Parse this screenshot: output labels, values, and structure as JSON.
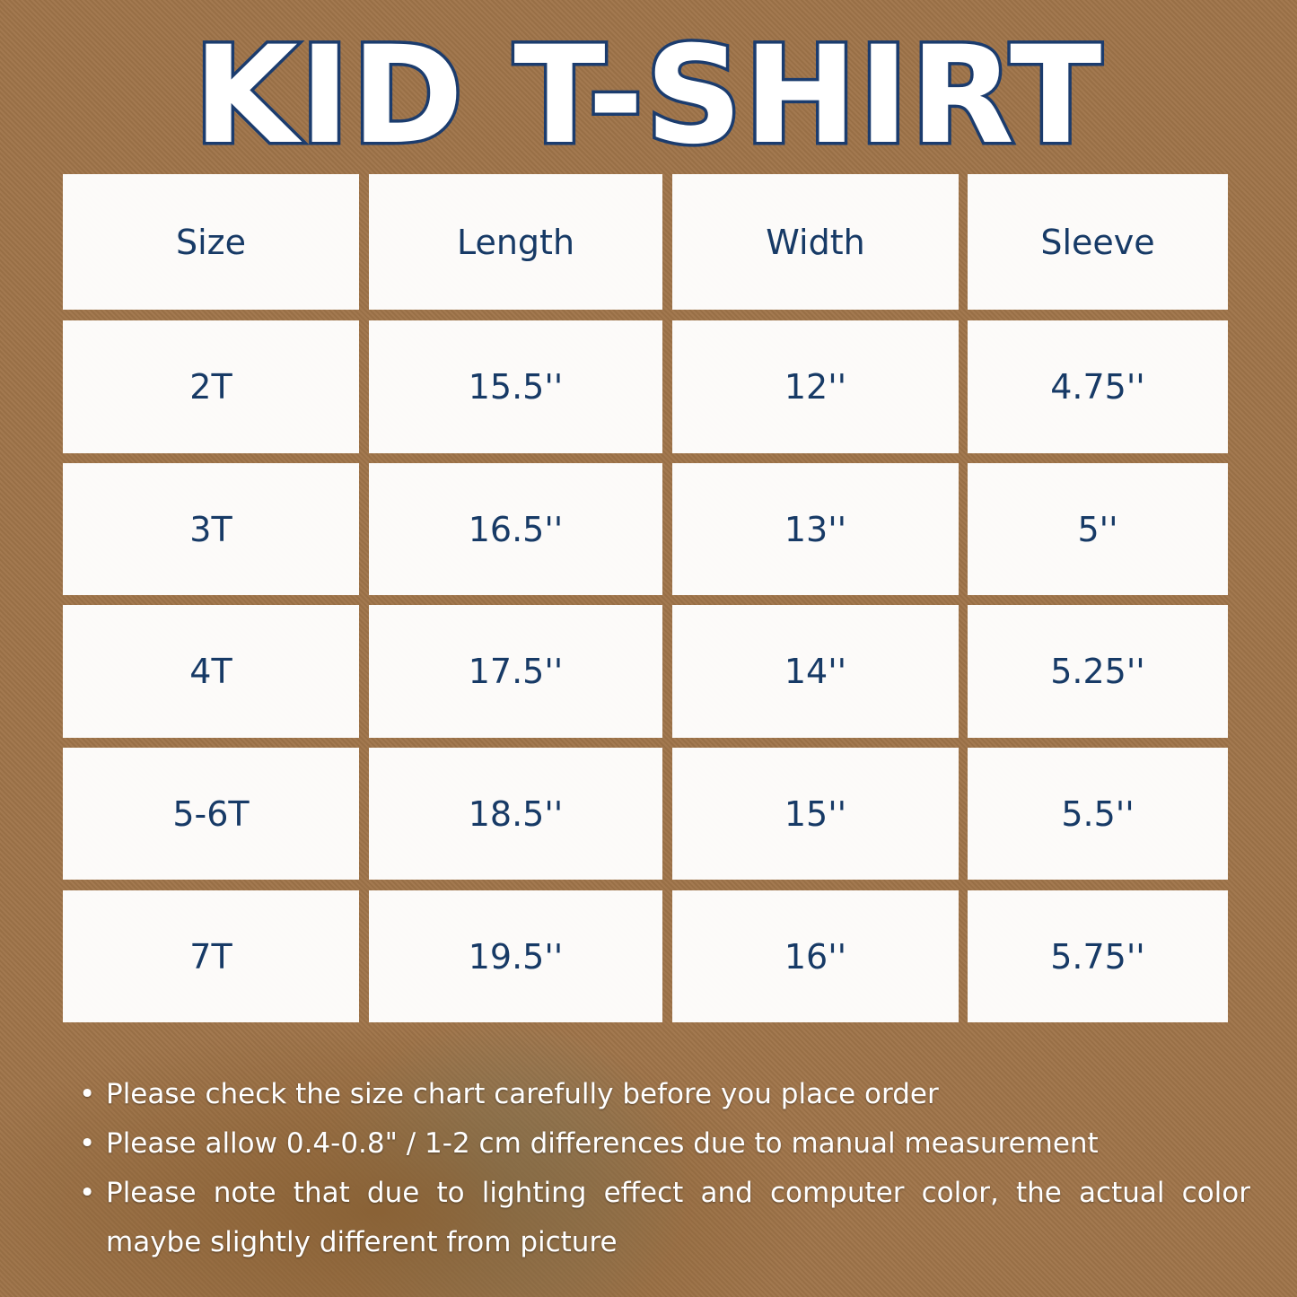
{
  "title": "KID T-SHIRT",
  "colors": {
    "text": "#173a66",
    "title_outline": "#1b3c6e",
    "background": "#a0754a"
  },
  "chart_data": {
    "type": "table",
    "columns": [
      "Size",
      "Length",
      "Width",
      "Sleeve"
    ],
    "rows": [
      [
        "2T",
        "15.5''",
        "12''",
        "4.75''"
      ],
      [
        "3T",
        "16.5''",
        "13''",
        "5''"
      ],
      [
        "4T",
        "17.5''",
        "14''",
        "5.25''"
      ],
      [
        "5-6T",
        "18.5''",
        "15''",
        "5.5''"
      ],
      [
        "7T",
        "19.5''",
        "16''",
        "5.75''"
      ]
    ]
  },
  "notes": [
    "Please check the size chart carefully before you place order",
    "Please allow 0.4-0.8\" / 1-2 cm differences due to manual measurement",
    "Please note that due to lighting effect and computer color, the actual color maybe slightly different from picture"
  ]
}
